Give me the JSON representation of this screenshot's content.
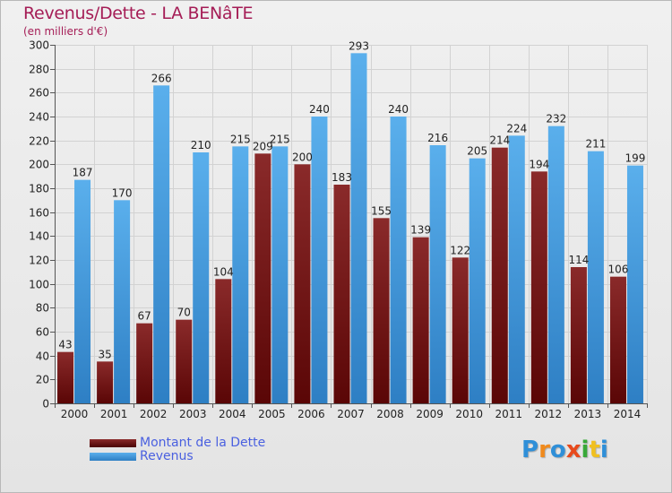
{
  "title": "Revenus/Dette - LA BENâTE",
  "subtitle": "(en milliers d'€)",
  "colors": {
    "dette": "#7a1a1a",
    "revenus": "#4a9ee0",
    "title": "#a51d56",
    "legend_text": "#4a60e0"
  },
  "legend": {
    "items": [
      {
        "label": "Montant de la Dette",
        "color": "#6b0f0f"
      },
      {
        "label": "Revenus",
        "color": "#4a9ee0"
      }
    ]
  },
  "logo": {
    "letters": [
      {
        "char": "P",
        "color": "#2f8fd8"
      },
      {
        "char": "r",
        "color": "#f08a1c"
      },
      {
        "char": "o",
        "color": "#2f8fd8"
      },
      {
        "char": "x",
        "color": "#e84a1c"
      },
      {
        "char": "i",
        "color": "#38a838"
      },
      {
        "char": "t",
        "color": "#f0c020"
      },
      {
        "char": "i",
        "color": "#2f8fd8"
      }
    ]
  },
  "chart_data": {
    "type": "bar",
    "categories": [
      "2000",
      "2001",
      "2002",
      "2003",
      "2004",
      "2005",
      "2006",
      "2007",
      "2008",
      "2009",
      "2010",
      "2011",
      "2012",
      "2013",
      "2014"
    ],
    "series": [
      {
        "name": "Montant de la Dette",
        "values": [
          43,
          35,
          67,
          70,
          104,
          209,
          200,
          183,
          155,
          139,
          122,
          214,
          194,
          114,
          106
        ]
      },
      {
        "name": "Revenus",
        "values": [
          187,
          170,
          266,
          210,
          215,
          215,
          240,
          293,
          240,
          216,
          205,
          224,
          232,
          211,
          199
        ]
      }
    ],
    "ylim": [
      0,
      300
    ],
    "yticks": [
      0,
      20,
      40,
      60,
      80,
      100,
      120,
      140,
      160,
      180,
      200,
      220,
      240,
      260,
      280,
      300
    ],
    "grid": true,
    "legend_position": "bottom-left"
  }
}
